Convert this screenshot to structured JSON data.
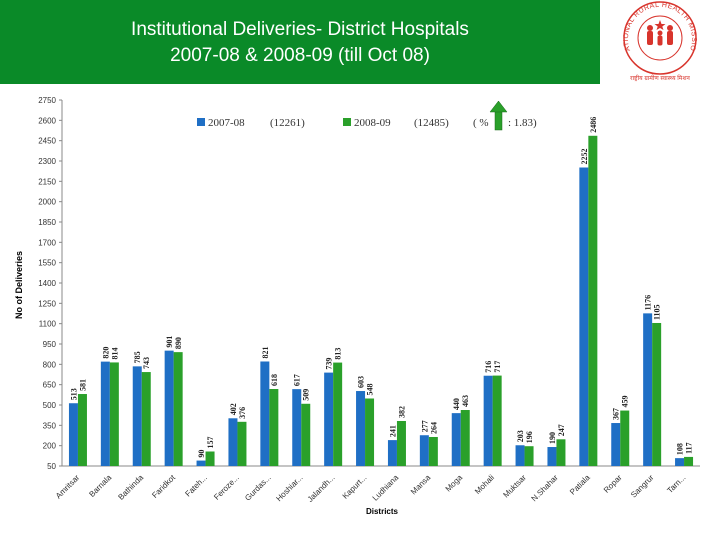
{
  "header": {
    "title_line1": "Institutional Deliveries- District Hospitals",
    "title_line2": "2007-08 & 2008-09 (till Oct 08)",
    "bg_color": "#0a8a28"
  },
  "logo": {
    "text": "NATIONAL RURAL HEALTH MISSION",
    "subtext": "राष्ट्रीय ग्रामीण स्वास्थ्य मिशन",
    "color": "#d8342c"
  },
  "chart_data": {
    "type": "bar",
    "title": "",
    "xlabel": "Districts",
    "ylabel": "No of Deliveries",
    "ylim": [
      50,
      2750
    ],
    "yticks": [
      50,
      200,
      350,
      500,
      650,
      800,
      950,
      1100,
      1250,
      1400,
      1550,
      1700,
      1850,
      2000,
      2150,
      2300,
      2450,
      2600,
      2750
    ],
    "grid": false,
    "legend_position": "top",
    "categories": [
      "Amritsar",
      "Barnala",
      "Bathinda",
      "Faridkot",
      "Fateh...",
      "Feroze...",
      "Gurdas...",
      "Hoshiar...",
      "Jalandh...",
      "Kapurt...",
      "Ludhiana",
      "Mansa",
      "Moga",
      "Mohali",
      "Muktsar",
      "N.Shahar",
      "Patiala",
      "Ropar",
      "Sangrur",
      "Tarn..."
    ],
    "series": [
      {
        "name": "2007-08",
        "total": "(12261)",
        "color": "#1f6fc5",
        "values": [
          513,
          820,
          785,
          901,
          90,
          402,
          821,
          617,
          739,
          603,
          241,
          277,
          440,
          716,
          203,
          190,
          2252,
          367,
          1176,
          108
        ],
        "labels": [
          "513",
          "820",
          "785",
          "901",
          "90",
          "402",
          "821",
          "617",
          "739",
          "603",
          "241",
          "277",
          "440",
          "716",
          "203",
          "190",
          "2252",
          "367",
          "1176",
          "108"
        ]
      },
      {
        "name": "2008-09",
        "total": "(12485)",
        "color": "#2aa02a",
        "values": [
          581,
          814,
          743,
          890,
          157,
          376,
          618,
          509,
          813,
          548,
          382,
          264,
          463,
          717,
          196,
          247,
          2486,
          459,
          1105,
          117
        ],
        "labels": [
          "581",
          "814",
          "743",
          "890",
          "157",
          "376",
          "618",
          "509",
          "813",
          "548",
          "382",
          "264",
          "463",
          "717",
          "196",
          "247",
          "2486",
          "459",
          "1105",
          "117"
        ]
      }
    ],
    "annotation": {
      "text_prefix": "( %",
      "text_suffix": ": 1.83)",
      "arrow_color": "#2aa02a"
    }
  }
}
